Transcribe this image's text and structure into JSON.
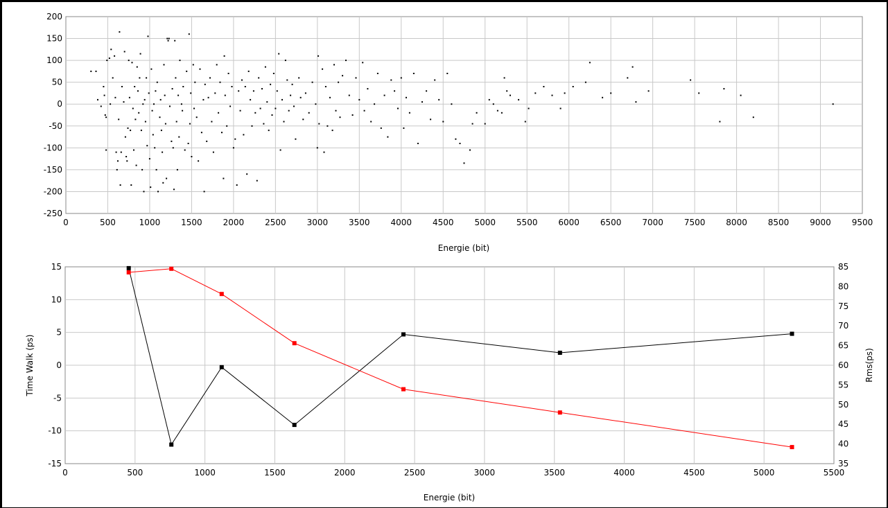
{
  "chart_data": [
    {
      "type": "scatter",
      "xlabel": "Energie (bit)",
      "ylabel": "",
      "xlim": [
        0,
        9500
      ],
      "ylim": [
        -250,
        200
      ],
      "xticks": [
        "0",
        "500",
        "1000",
        "1500",
        "2000",
        "2500",
        "3000",
        "3500",
        "4000",
        "4500",
        "5000",
        "5500",
        "6000",
        "6500",
        "7000",
        "7500",
        "8000",
        "8500",
        "9000",
        "9500"
      ],
      "yticks": [
        "-250",
        "-200",
        "-150",
        "-100",
        "-50",
        "0",
        "50",
        "100",
        "150",
        "200"
      ],
      "grid": true,
      "marker_color": "#000000",
      "points": [
        [
          300,
          75
        ],
        [
          360,
          75
        ],
        [
          380,
          10
        ],
        [
          420,
          -5
        ],
        [
          450,
          40
        ],
        [
          460,
          20
        ],
        [
          470,
          -25
        ],
        [
          480,
          -30
        ],
        [
          480,
          -105
        ],
        [
          490,
          100
        ],
        [
          520,
          105
        ],
        [
          530,
          0
        ],
        [
          540,
          125
        ],
        [
          560,
          60
        ],
        [
          580,
          110
        ],
        [
          590,
          15
        ],
        [
          600,
          -110
        ],
        [
          610,
          -150
        ],
        [
          620,
          -130
        ],
        [
          630,
          -35
        ],
        [
          640,
          165
        ],
        [
          650,
          -185
        ],
        [
          660,
          -110
        ],
        [
          670,
          40
        ],
        [
          690,
          5
        ],
        [
          700,
          120
        ],
        [
          710,
          -75
        ],
        [
          720,
          -120
        ],
        [
          730,
          -130
        ],
        [
          740,
          -55
        ],
        [
          750,
          100
        ],
        [
          760,
          15
        ],
        [
          770,
          -60
        ],
        [
          780,
          -185
        ],
        [
          790,
          95
        ],
        [
          800,
          -10
        ],
        [
          810,
          -105
        ],
        [
          820,
          40
        ],
        [
          830,
          -35
        ],
        [
          840,
          -140
        ],
        [
          850,
          85
        ],
        [
          860,
          30
        ],
        [
          870,
          -20
        ],
        [
          880,
          60
        ],
        [
          890,
          115
        ],
        [
          900,
          -60
        ],
        [
          910,
          -150
        ],
        [
          920,
          0
        ],
        [
          930,
          -200
        ],
        [
          940,
          10
        ],
        [
          950,
          -40
        ],
        [
          960,
          60
        ],
        [
          970,
          -95
        ],
        [
          980,
          155
        ],
        [
          990,
          25
        ],
        [
          1000,
          -125
        ],
        [
          1010,
          -190
        ],
        [
          1020,
          80
        ],
        [
          1030,
          -15
        ],
        [
          1040,
          -70
        ],
        [
          1050,
          0
        ],
        [
          1060,
          -100
        ],
        [
          1070,
          30
        ],
        [
          1080,
          -150
        ],
        [
          1090,
          50
        ],
        [
          1100,
          -200
        ],
        [
          1120,
          -30
        ],
        [
          1130,
          10
        ],
        [
          1140,
          -60
        ],
        [
          1150,
          -110
        ],
        [
          1160,
          -180
        ],
        [
          1170,
          90
        ],
        [
          1180,
          20
        ],
        [
          1190,
          -45
        ],
        [
          1200,
          -170
        ],
        [
          1210,
          150
        ],
        [
          1220,
          145
        ],
        [
          1230,
          150
        ],
        [
          1240,
          -5
        ],
        [
          1260,
          -85
        ],
        [
          1270,
          35
        ],
        [
          1280,
          -100
        ],
        [
          1290,
          -195
        ],
        [
          1300,
          145
        ],
        [
          1310,
          60
        ],
        [
          1320,
          -40
        ],
        [
          1330,
          -150
        ],
        [
          1340,
          20
        ],
        [
          1350,
          -75
        ],
        [
          1360,
          100
        ],
        [
          1380,
          0
        ],
        [
          1390,
          -15
        ],
        [
          1400,
          40
        ],
        [
          1420,
          -105
        ],
        [
          1440,
          75
        ],
        [
          1460,
          -90
        ],
        [
          1470,
          160
        ],
        [
          1480,
          -45
        ],
        [
          1490,
          25
        ],
        [
          1500,
          -120
        ],
        [
          1520,
          90
        ],
        [
          1530,
          -10
        ],
        [
          1540,
          50
        ],
        [
          1560,
          -30
        ],
        [
          1580,
          -130
        ],
        [
          1600,
          80
        ],
        [
          1620,
          -65
        ],
        [
          1640,
          10
        ],
        [
          1650,
          -200
        ],
        [
          1660,
          45
        ],
        [
          1680,
          -85
        ],
        [
          1700,
          15
        ],
        [
          1720,
          60
        ],
        [
          1740,
          -40
        ],
        [
          1760,
          -110
        ],
        [
          1780,
          25
        ],
        [
          1800,
          90
        ],
        [
          1820,
          -20
        ],
        [
          1840,
          50
        ],
        [
          1860,
          -65
        ],
        [
          1880,
          -170
        ],
        [
          1890,
          110
        ],
        [
          1900,
          20
        ],
        [
          1920,
          -50
        ],
        [
          1940,
          70
        ],
        [
          1960,
          -5
        ],
        [
          1980,
          40
        ],
        [
          2000,
          -100
        ],
        [
          2020,
          -80
        ],
        [
          2040,
          -185
        ],
        [
          2060,
          30
        ],
        [
          2080,
          -15
        ],
        [
          2100,
          55
        ],
        [
          2120,
          -70
        ],
        [
          2140,
          40
        ],
        [
          2160,
          -160
        ],
        [
          2180,
          75
        ],
        [
          2200,
          10
        ],
        [
          2220,
          -50
        ],
        [
          2240,
          30
        ],
        [
          2260,
          -20
        ],
        [
          2280,
          -175
        ],
        [
          2300,
          60
        ],
        [
          2320,
          -10
        ],
        [
          2340,
          35
        ],
        [
          2360,
          -45
        ],
        [
          2380,
          85
        ],
        [
          2400,
          5
        ],
        [
          2420,
          -60
        ],
        [
          2440,
          45
        ],
        [
          2460,
          -25
        ],
        [
          2480,
          70
        ],
        [
          2500,
          -10
        ],
        [
          2520,
          30
        ],
        [
          2540,
          115
        ],
        [
          2560,
          -105
        ],
        [
          2580,
          10
        ],
        [
          2600,
          -40
        ],
        [
          2620,
          100
        ],
        [
          2640,
          55
        ],
        [
          2660,
          -15
        ],
        [
          2680,
          20
        ],
        [
          2700,
          45
        ],
        [
          2720,
          -5
        ],
        [
          2740,
          -80
        ],
        [
          2780,
          60
        ],
        [
          2800,
          15
        ],
        [
          2830,
          -35
        ],
        [
          2860,
          25
        ],
        [
          2900,
          -20
        ],
        [
          2940,
          50
        ],
        [
          2980,
          0
        ],
        [
          3000,
          -100
        ],
        [
          3010,
          110
        ],
        [
          3020,
          -45
        ],
        [
          3060,
          80
        ],
        [
          3080,
          -110
        ],
        [
          3100,
          40
        ],
        [
          3120,
          -50
        ],
        [
          3150,
          15
        ],
        [
          3180,
          -60
        ],
        [
          3200,
          90
        ],
        [
          3220,
          -15
        ],
        [
          3250,
          50
        ],
        [
          3270,
          -30
        ],
        [
          3300,
          65
        ],
        [
          3340,
          100
        ],
        [
          3380,
          20
        ],
        [
          3420,
          -25
        ],
        [
          3460,
          60
        ],
        [
          3500,
          10
        ],
        [
          3540,
          95
        ],
        [
          3560,
          -15
        ],
        [
          3600,
          35
        ],
        [
          3640,
          -40
        ],
        [
          3680,
          0
        ],
        [
          3720,
          70
        ],
        [
          3760,
          -55
        ],
        [
          3800,
          20
        ],
        [
          3840,
          -75
        ],
        [
          3880,
          55
        ],
        [
          3920,
          30
        ],
        [
          3960,
          -10
        ],
        [
          4000,
          60
        ],
        [
          4030,
          -55
        ],
        [
          4060,
          15
        ],
        [
          4100,
          -20
        ],
        [
          4150,
          70
        ],
        [
          4200,
          -90
        ],
        [
          4250,
          5
        ],
        [
          4300,
          30
        ],
        [
          4350,
          -35
        ],
        [
          4400,
          55
        ],
        [
          4450,
          10
        ],
        [
          4500,
          -40
        ],
        [
          4550,
          70
        ],
        [
          4600,
          0
        ],
        [
          4650,
          -80
        ],
        [
          4700,
          -90
        ],
        [
          4750,
          -135
        ],
        [
          4820,
          -105
        ],
        [
          4850,
          -45
        ],
        [
          4900,
          -20
        ],
        [
          5000,
          -45
        ],
        [
          5050,
          10
        ],
        [
          5100,
          0
        ],
        [
          5150,
          -15
        ],
        [
          5200,
          -20
        ],
        [
          5230,
          60
        ],
        [
          5260,
          30
        ],
        [
          5300,
          20
        ],
        [
          5400,
          10
        ],
        [
          5480,
          -40
        ],
        [
          5520,
          -10
        ],
        [
          5600,
          25
        ],
        [
          5700,
          40
        ],
        [
          5800,
          20
        ],
        [
          5900,
          -10
        ],
        [
          5950,
          25
        ],
        [
          6050,
          40
        ],
        [
          6200,
          50
        ],
        [
          6250,
          95
        ],
        [
          6400,
          15
        ],
        [
          6500,
          25
        ],
        [
          6700,
          60
        ],
        [
          6760,
          85
        ],
        [
          6800,
          5
        ],
        [
          6950,
          30
        ],
        [
          7450,
          55
        ],
        [
          7550,
          25
        ],
        [
          7800,
          -40
        ],
        [
          7850,
          35
        ],
        [
          8050,
          20
        ],
        [
          8200,
          -30
        ],
        [
          9150,
          0
        ]
      ]
    },
    {
      "type": "line",
      "xlabel": "Energie (bit)",
      "ylabel_left": "Time Walk (ps)",
      "ylabel_right": "Rms(ps)",
      "xlim": [
        0,
        5500
      ],
      "ylim_left": [
        -15,
        15
      ],
      "ylim_right": [
        35,
        85
      ],
      "xticks": [
        "0",
        "500",
        "1000",
        "1500",
        "2000",
        "2500",
        "3000",
        "3500",
        "4000",
        "4500",
        "5000",
        "5500"
      ],
      "yticks_left": [
        "-15",
        "-10",
        "-5",
        "0",
        "5",
        "10",
        "15"
      ],
      "yticks_right": [
        "35",
        "40",
        "45",
        "50",
        "55",
        "60",
        "65",
        "70",
        "75",
        "80",
        "85"
      ],
      "grid": true,
      "series": [
        {
          "axis": "left",
          "color": "#000000",
          "x": [
            455,
            760,
            1120,
            1640,
            2420,
            3540,
            5200
          ],
          "y": [
            14.8,
            -12.1,
            -0.3,
            -9.1,
            4.7,
            1.9,
            4.8
          ]
        },
        {
          "axis": "right",
          "color": "#ff0000",
          "x": [
            455,
            760,
            1120,
            1640,
            2420,
            3540,
            5200
          ],
          "y": [
            83.6,
            84.5,
            78.1,
            65.6,
            53.9,
            48.0,
            39.2
          ]
        }
      ]
    }
  ]
}
